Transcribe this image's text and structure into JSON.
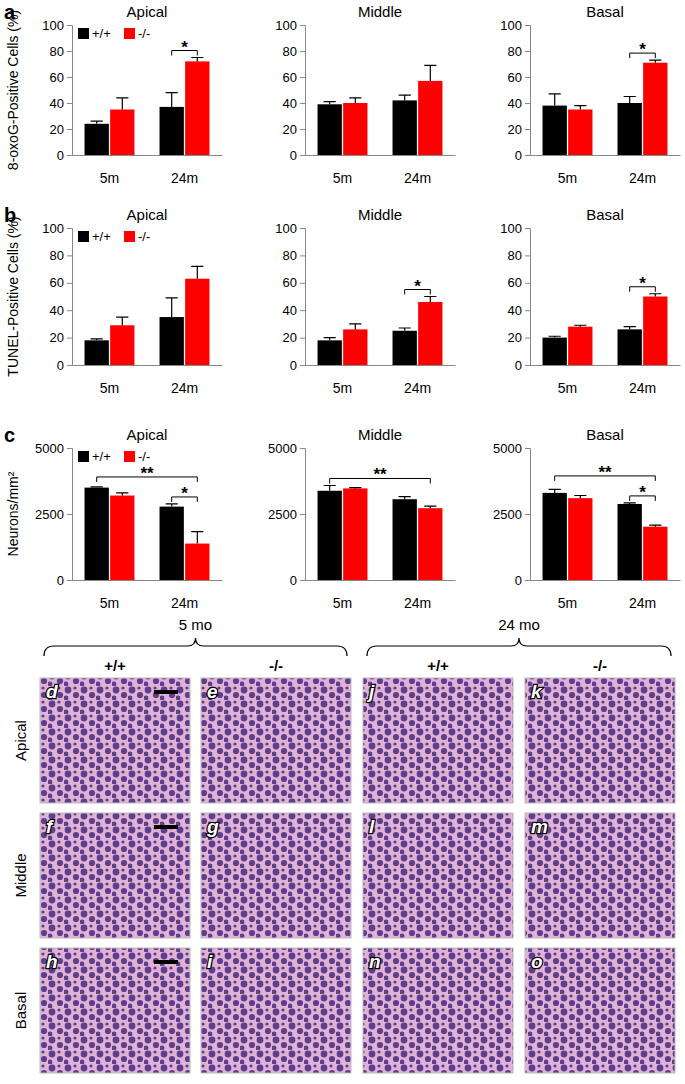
{
  "row_labels": [
    "a",
    "b",
    "c"
  ],
  "chart_data": [
    {
      "type": "bar",
      "title": "Apical",
      "ylabel": "8-oxoG-Positive Cells (%)",
      "categories": [
        "5m",
        "24m"
      ],
      "series": [
        {
          "name": "+/+",
          "color": "#000000",
          "values": [
            24,
            37
          ],
          "errors": [
            2,
            11
          ]
        },
        {
          "name": "-/-",
          "color": "#ff0000",
          "values": [
            35,
            72
          ],
          "errors": [
            9,
            3
          ]
        }
      ],
      "ylim": [
        0,
        100
      ],
      "yticks": [
        0,
        20,
        40,
        60,
        80,
        100
      ],
      "legend": "upper left",
      "annotations": [
        {
          "text": "*",
          "from": [
            1,
            0
          ],
          "to": [
            1,
            1
          ]
        }
      ]
    },
    {
      "type": "bar",
      "title": "Middle",
      "categories": [
        "5m",
        "24m"
      ],
      "series": [
        {
          "color": "#000000",
          "values": [
            39,
            42
          ],
          "errors": [
            2,
            4
          ]
        },
        {
          "color": "#ff0000",
          "values": [
            40,
            57
          ],
          "errors": [
            4,
            12
          ]
        }
      ],
      "ylim": [
        0,
        100
      ],
      "yticks": [
        0,
        20,
        40,
        60,
        80,
        100
      ],
      "annotations": []
    },
    {
      "type": "bar",
      "title": "Basal",
      "categories": [
        "5m",
        "24m"
      ],
      "series": [
        {
          "color": "#000000",
          "values": [
            38,
            40
          ],
          "errors": [
            9,
            5
          ]
        },
        {
          "color": "#ff0000",
          "values": [
            35,
            71
          ],
          "errors": [
            3,
            2
          ]
        }
      ],
      "ylim": [
        0,
        100
      ],
      "yticks": [
        0,
        20,
        40,
        60,
        80,
        100
      ],
      "annotations": [
        {
          "text": "*",
          "from": [
            1,
            0
          ],
          "to": [
            1,
            1
          ]
        }
      ]
    },
    {
      "type": "bar",
      "title": "Apical",
      "ylabel": "TUNEL-Positive Cells (%)",
      "categories": [
        "5m",
        "24m"
      ],
      "series": [
        {
          "name": "+/+",
          "color": "#000000",
          "values": [
            18,
            35
          ],
          "errors": [
            1,
            14
          ]
        },
        {
          "name": "-/-",
          "color": "#ff0000",
          "values": [
            29,
            63
          ],
          "errors": [
            6,
            9
          ]
        }
      ],
      "ylim": [
        0,
        100
      ],
      "yticks": [
        0,
        20,
        40,
        60,
        80,
        100
      ],
      "legend": "upper left",
      "annotations": []
    },
    {
      "type": "bar",
      "title": "Middle",
      "categories": [
        "5m",
        "24m"
      ],
      "series": [
        {
          "color": "#000000",
          "values": [
            18,
            25
          ],
          "errors": [
            2,
            2
          ]
        },
        {
          "color": "#ff0000",
          "values": [
            26,
            46
          ],
          "errors": [
            4,
            4
          ]
        }
      ],
      "ylim": [
        0,
        100
      ],
      "yticks": [
        0,
        20,
        40,
        60,
        80,
        100
      ],
      "annotations": [
        {
          "text": "*",
          "from": [
            1,
            0
          ],
          "to": [
            1,
            1
          ]
        }
      ]
    },
    {
      "type": "bar",
      "title": "Basal",
      "categories": [
        "5m",
        "24m"
      ],
      "series": [
        {
          "color": "#000000",
          "values": [
            20,
            26
          ],
          "errors": [
            1,
            2
          ]
        },
        {
          "color": "#ff0000",
          "values": [
            28,
            50
          ],
          "errors": [
            1,
            2
          ]
        }
      ],
      "ylim": [
        0,
        100
      ],
      "yticks": [
        0,
        20,
        40,
        60,
        80,
        100
      ],
      "annotations": [
        {
          "text": "*",
          "from": [
            1,
            0
          ],
          "to": [
            1,
            1
          ]
        }
      ]
    },
    {
      "type": "bar",
      "title": "Apical",
      "ylabel": "Neurons/mm²",
      "categories": [
        "5m",
        "24m"
      ],
      "series": [
        {
          "name": "+/+",
          "color": "#000000",
          "values": [
            3500,
            2780
          ],
          "errors": [
            30,
            100
          ]
        },
        {
          "name": "-/-",
          "color": "#ff0000",
          "values": [
            3200,
            1380
          ],
          "errors": [
            100,
            450
          ]
        }
      ],
      "ylim": [
        0,
        5000
      ],
      "yticks": [
        0,
        2500,
        5000
      ],
      "legend": "upper left",
      "annotations": [
        {
          "text": "*",
          "from": [
            1,
            0
          ],
          "to": [
            1,
            1
          ]
        },
        {
          "text": "**",
          "from": [
            0,
            0
          ],
          "to": [
            1,
            1
          ]
        }
      ]
    },
    {
      "type": "bar",
      "title": "Middle",
      "categories": [
        "5m",
        "24m"
      ],
      "series": [
        {
          "color": "#000000",
          "values": [
            3380,
            3060
          ],
          "errors": [
            200,
            100
          ]
        },
        {
          "color": "#ff0000",
          "values": [
            3470,
            2720
          ],
          "errors": [
            30,
            80
          ]
        }
      ],
      "ylim": [
        0,
        5000
      ],
      "yticks": [
        0,
        2500,
        5000
      ],
      "annotations": [
        {
          "text": "**",
          "from": [
            0,
            0
          ],
          "to": [
            1,
            1
          ]
        }
      ]
    },
    {
      "type": "bar",
      "title": "Basal",
      "categories": [
        "5m",
        "24m"
      ],
      "series": [
        {
          "color": "#000000",
          "values": [
            3300,
            2880
          ],
          "errors": [
            130,
            40
          ]
        },
        {
          "color": "#ff0000",
          "values": [
            3100,
            2020
          ],
          "errors": [
            100,
            60
          ]
        }
      ],
      "ylim": [
        0,
        5000
      ],
      "yticks": [
        0,
        2500,
        5000
      ],
      "annotations": [
        {
          "text": "*",
          "from": [
            1,
            0
          ],
          "to": [
            1,
            1
          ]
        },
        {
          "text": "**",
          "from": [
            0,
            0
          ],
          "to": [
            1,
            1
          ]
        }
      ]
    }
  ],
  "image_panels": {
    "groups": [
      {
        "label": "5 mo",
        "span": [
          0,
          1
        ]
      },
      {
        "label": "24 mo",
        "span": [
          2,
          3
        ]
      }
    ],
    "columns": [
      "+/+",
      "-/-",
      "+/+",
      "-/-"
    ],
    "rows": [
      "Apical",
      "Middle",
      "Basal"
    ],
    "letters": [
      [
        "d",
        "e",
        "j",
        "k"
      ],
      [
        "f",
        "g",
        "l",
        "m"
      ],
      [
        "h",
        "i",
        "n",
        "o"
      ]
    ]
  }
}
